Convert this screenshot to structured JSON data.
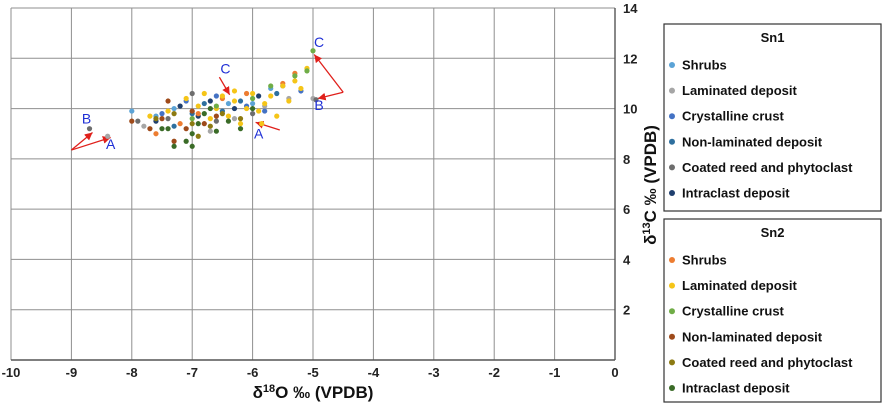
{
  "chart_data": {
    "type": "scatter",
    "xlabel": "δ18O ‰ (VPDB)",
    "ylabel": "δ13C ‰ (VPDB)",
    "xlim": [
      -10,
      0
    ],
    "ylim": [
      0,
      14
    ],
    "x_ticks": [
      "-10",
      "-9",
      "-8",
      "-7",
      "-6",
      "-5",
      "-4",
      "-3",
      "-2",
      "-1",
      "0"
    ],
    "y_ticks": [
      "2",
      "4",
      "6",
      "8",
      "10",
      "12",
      "14"
    ],
    "grid": true,
    "legend_placement": "right",
    "legend_groups": [
      {
        "title": "Sn1",
        "series": [
          {
            "name": "Shrubs",
            "color": "#5ba3d6",
            "points": [
              [
                -8.0,
                9.9
              ],
              [
                -7.6,
                9.7
              ],
              [
                -7.3,
                10.0
              ],
              [
                -6.4,
                10.2
              ],
              [
                -6.0,
                10.2
              ],
              [
                -5.7,
                10.8
              ],
              [
                -5.5,
                10.9
              ]
            ]
          },
          {
            "name": "Laminated deposit",
            "color": "#a6a6a6",
            "points": [
              [
                -8.4,
                8.9
              ],
              [
                -7.8,
                9.3
              ],
              [
                -7.2,
                10.1
              ],
              [
                -6.7,
                9.1
              ],
              [
                -6.3,
                9.6
              ],
              [
                -5.8,
                10.1
              ],
              [
                -5.4,
                10.4
              ],
              [
                -5.0,
                10.4
              ]
            ]
          },
          {
            "name": "Crystalline crust",
            "color": "#4472c4",
            "points": [
              [
                -7.5,
                9.8
              ],
              [
                -7.1,
                10.3
              ],
              [
                -6.6,
                10.5
              ],
              [
                -6.1,
                10.1
              ],
              [
                -5.8,
                9.9
              ],
              [
                -5.2,
                10.7
              ]
            ]
          },
          {
            "name": "Non-laminated deposit",
            "color": "#2e6f9e",
            "points": [
              [
                -7.3,
                9.3
              ],
              [
                -7.0,
                9.8
              ],
              [
                -6.8,
                10.2
              ],
              [
                -6.5,
                9.9
              ],
              [
                -6.2,
                10.3
              ],
              [
                -5.6,
                10.6
              ]
            ]
          },
          {
            "name": "Coated reed and phytoclast",
            "color": "#6d6d6d",
            "points": [
              [
                -8.7,
                9.2
              ],
              [
                -7.9,
                9.5
              ],
              [
                -7.4,
                9.6
              ],
              [
                -7.0,
                10.6
              ],
              [
                -6.6,
                9.5
              ],
              [
                -6.0,
                9.8
              ],
              [
                -4.95,
                10.35
              ]
            ]
          },
          {
            "name": "Intraclast deposit",
            "color": "#1f3f6e",
            "points": [
              [
                -7.6,
                9.5
              ],
              [
                -7.2,
                10.1
              ],
              [
                -6.9,
                9.7
              ],
              [
                -6.7,
                10.3
              ],
              [
                -6.3,
                10.0
              ],
              [
                -5.9,
                10.5
              ]
            ]
          }
        ]
      },
      {
        "title": "Sn2",
        "series": [
          {
            "name": "Shrubs",
            "color": "#ed7d31",
            "points": [
              [
                -7.6,
                9.0
              ],
              [
                -7.2,
                9.4
              ],
              [
                -6.9,
                9.8
              ],
              [
                -6.5,
                10.4
              ],
              [
                -6.1,
                10.6
              ],
              [
                -5.5,
                11.0
              ],
              [
                -5.3,
                11.4
              ]
            ]
          },
          {
            "name": "Laminated deposit",
            "color": "#f5c518",
            "points": [
              [
                -7.7,
                9.7
              ],
              [
                -7.4,
                9.9
              ],
              [
                -7.1,
                10.4
              ],
              [
                -6.9,
                10.1
              ],
              [
                -6.7,
                9.6
              ],
              [
                -6.6,
                10.0
              ],
              [
                -6.4,
                9.7
              ],
              [
                -6.3,
                10.3
              ],
              [
                -6.2,
                9.4
              ],
              [
                -6.1,
                10.0
              ],
              [
                -6.0,
                10.6
              ],
              [
                -5.9,
                9.9
              ],
              [
                -5.85,
                9.4
              ],
              [
                -5.8,
                10.2
              ],
              [
                -5.7,
                10.5
              ],
              [
                -5.6,
                9.7
              ],
              [
                -5.5,
                10.9
              ],
              [
                -5.4,
                10.3
              ],
              [
                -5.3,
                11.1
              ],
              [
                -5.2,
                10.8
              ],
              [
                -5.1,
                11.6
              ],
              [
                -6.8,
                10.6
              ],
              [
                -6.5,
                10.5
              ],
              [
                -6.3,
                10.7
              ]
            ]
          },
          {
            "name": "Crystalline crust",
            "color": "#70ad47",
            "points": [
              [
                -7.0,
                9.6
              ],
              [
                -6.6,
                10.1
              ],
              [
                -6.0,
                10.4
              ],
              [
                -5.7,
                10.9
              ],
              [
                -5.3,
                11.3
              ],
              [
                -5.1,
                11.5
              ],
              [
                -5.0,
                12.3
              ]
            ]
          },
          {
            "name": "Non-laminated deposit",
            "color": "#9e4a1a",
            "points": [
              [
                -8.0,
                9.5
              ],
              [
                -7.7,
                9.2
              ],
              [
                -7.5,
                9.6
              ],
              [
                -7.4,
                10.3
              ],
              [
                -7.3,
                8.7
              ],
              [
                -7.1,
                9.2
              ],
              [
                -7.0,
                9.9
              ],
              [
                -6.8,
                9.4
              ],
              [
                -6.6,
                9.7
              ]
            ]
          },
          {
            "name": "Coated reed and phytoclast",
            "color": "#8c7a12",
            "points": [
              [
                -7.6,
                9.6
              ],
              [
                -7.3,
                9.8
              ],
              [
                -7.0,
                9.4
              ],
              [
                -6.9,
                8.9
              ],
              [
                -6.7,
                9.3
              ],
              [
                -6.5,
                9.8
              ],
              [
                -6.2,
                9.6
              ]
            ]
          },
          {
            "name": "Intraclast deposit",
            "color": "#3a6b27",
            "points": [
              [
                -7.5,
                9.2
              ],
              [
                -7.3,
                8.5
              ],
              [
                -7.1,
                8.7
              ],
              [
                -7.0,
                8.5
              ],
              [
                -7.0,
                9.0
              ],
              [
                -6.9,
                9.4
              ],
              [
                -6.8,
                9.8
              ],
              [
                -6.7,
                10.0
              ],
              [
                -6.6,
                9.1
              ],
              [
                -6.4,
                9.5
              ],
              [
                -6.2,
                9.2
              ],
              [
                -6.0,
                10.0
              ],
              [
                -7.4,
                9.2
              ]
            ]
          }
        ]
      }
    ],
    "annotations": [
      {
        "text": "B",
        "x": -8.75,
        "y": 9.4
      },
      {
        "text": "A",
        "x": -8.35,
        "y": 8.4
      },
      {
        "text": "C",
        "x": -6.45,
        "y": 11.4
      },
      {
        "text": "A",
        "x": -5.9,
        "y": 8.8
      },
      {
        "text": "C",
        "x": -4.9,
        "y": 12.45
      },
      {
        "text": "B",
        "x": -4.9,
        "y": 9.95
      }
    ]
  }
}
